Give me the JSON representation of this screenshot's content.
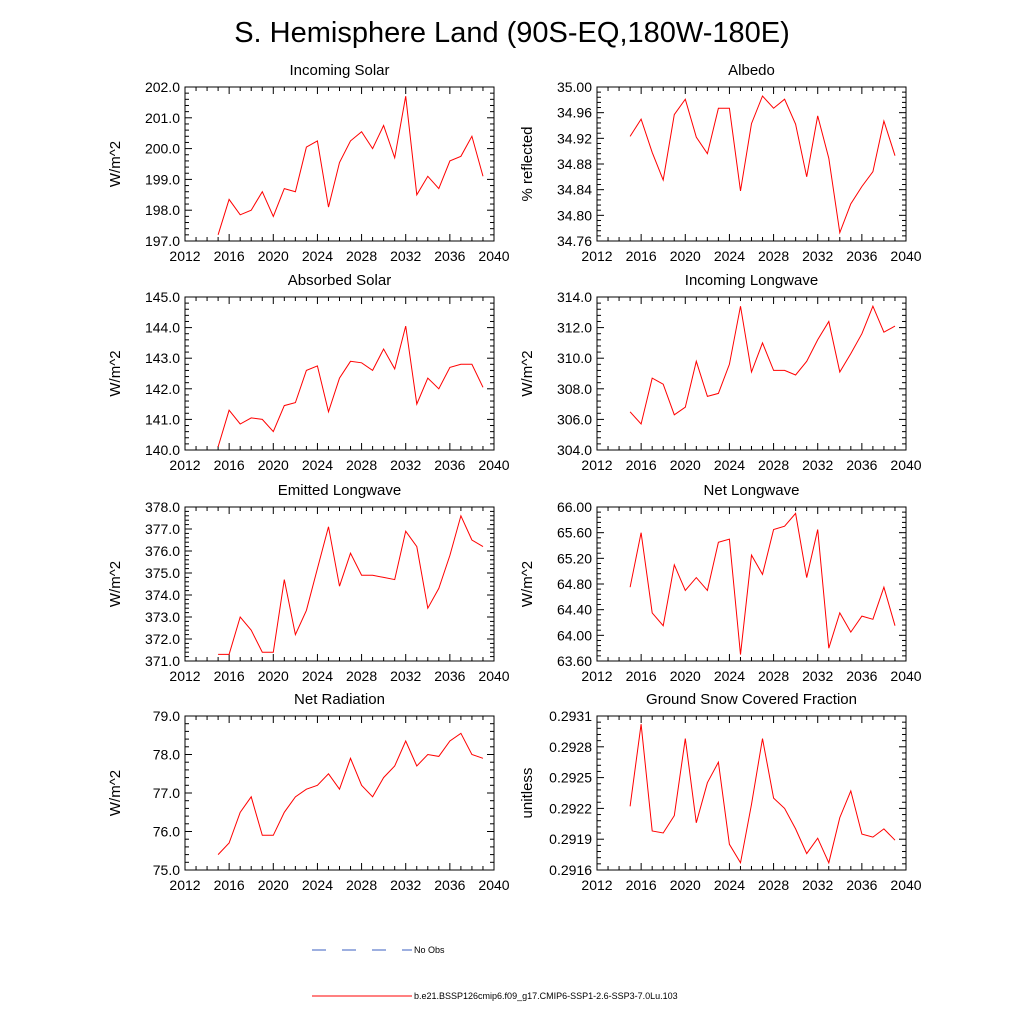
{
  "title": "S. Hemisphere Land (90S-EQ,180W-180E)",
  "legend": {
    "entries": [
      {
        "label": "No Obs",
        "color": "#3b5fc0",
        "style": "dashed"
      },
      {
        "label": "b.e21.BSSP126cmip6.f09_g17.CMIP6-SSP1-2.6-SSP3-7.0Lu.103",
        "color": "#ff0000",
        "style": "solid"
      }
    ]
  },
  "line_color": "#ff0000",
  "chart_data": [
    {
      "type": "line",
      "title": "Incoming Solar",
      "ylabel": "W/m^2",
      "xlim": [
        2012,
        2040
      ],
      "xticks": [
        2012,
        2016,
        2020,
        2024,
        2028,
        2032,
        2036,
        2040
      ],
      "ylim": [
        197.0,
        202.0
      ],
      "yticks": [
        "197.0",
        "198.0",
        "199.0",
        "200.0",
        "201.0",
        "202.0"
      ],
      "x": [
        2015,
        2016,
        2017,
        2018,
        2019,
        2020,
        2021,
        2022,
        2023,
        2024,
        2025,
        2026,
        2027,
        2028,
        2029,
        2030,
        2031,
        2032,
        2033,
        2034,
        2035,
        2036,
        2037,
        2038,
        2039
      ],
      "values": [
        197.2,
        198.35,
        197.85,
        198.0,
        198.6,
        197.8,
        198.7,
        198.6,
        200.05,
        200.25,
        198.1,
        199.55,
        200.25,
        200.55,
        200.0,
        200.75,
        199.7,
        201.7,
        198.5,
        199.1,
        198.7,
        199.6,
        199.75,
        200.4,
        199.1
      ]
    },
    {
      "type": "line",
      "title": "Albedo",
      "ylabel": "% reflected",
      "xlim": [
        2012,
        2040
      ],
      "xticks": [
        2012,
        2016,
        2020,
        2024,
        2028,
        2032,
        2036,
        2040
      ],
      "ylim": [
        34.76,
        35.0
      ],
      "yticks": [
        "34.76",
        "34.80",
        "34.84",
        "34.88",
        "34.92",
        "34.96",
        "35.00"
      ],
      "x": [
        2015,
        2016,
        2017,
        2018,
        2019,
        2020,
        2021,
        2022,
        2023,
        2024,
        2025,
        2026,
        2027,
        2028,
        2029,
        2030,
        2031,
        2032,
        2033,
        2034,
        2035,
        2036,
        2037,
        2038,
        2039
      ],
      "values": [
        34.923,
        34.95,
        34.898,
        34.855,
        34.957,
        34.981,
        34.922,
        34.896,
        34.967,
        34.967,
        34.838,
        34.943,
        34.986,
        34.967,
        34.981,
        34.942,
        34.86,
        34.955,
        34.889,
        34.773,
        34.818,
        34.845,
        34.868,
        34.947,
        34.893
      ]
    },
    {
      "type": "line",
      "title": "Absorbed Solar",
      "ylabel": "W/m^2",
      "xlim": [
        2012,
        2040
      ],
      "xticks": [
        2012,
        2016,
        2020,
        2024,
        2028,
        2032,
        2036,
        2040
      ],
      "ylim": [
        140.0,
        145.0
      ],
      "yticks": [
        "140.0",
        "141.0",
        "142.0",
        "143.0",
        "144.0",
        "145.0"
      ],
      "x": [
        2015,
        2016,
        2017,
        2018,
        2019,
        2020,
        2021,
        2022,
        2023,
        2024,
        2025,
        2026,
        2027,
        2028,
        2029,
        2030,
        2031,
        2032,
        2033,
        2034,
        2035,
        2036,
        2037,
        2038,
        2039
      ],
      "values": [
        140.1,
        141.3,
        140.85,
        141.05,
        141.0,
        140.6,
        141.45,
        141.55,
        142.6,
        142.75,
        141.25,
        142.35,
        142.9,
        142.85,
        142.6,
        143.3,
        142.65,
        144.05,
        141.5,
        142.35,
        142.0,
        142.7,
        142.8,
        142.8,
        142.05
      ]
    },
    {
      "type": "line",
      "title": "Incoming Longwave",
      "ylabel": "W/m^2",
      "xlim": [
        2012,
        2040
      ],
      "xticks": [
        2012,
        2016,
        2020,
        2024,
        2028,
        2032,
        2036,
        2040
      ],
      "ylim": [
        304.0,
        314.0
      ],
      "yticks": [
        "304.0",
        "306.0",
        "308.0",
        "310.0",
        "312.0",
        "314.0"
      ],
      "x": [
        2015,
        2016,
        2017,
        2018,
        2019,
        2020,
        2021,
        2022,
        2023,
        2024,
        2025,
        2026,
        2027,
        2028,
        2029,
        2030,
        2031,
        2032,
        2033,
        2034,
        2035,
        2036,
        2037,
        2038,
        2039
      ],
      "values": [
        306.5,
        305.7,
        308.7,
        308.3,
        306.3,
        306.8,
        309.8,
        307.5,
        307.7,
        309.6,
        313.4,
        309.1,
        311.0,
        309.2,
        309.2,
        308.9,
        309.8,
        311.2,
        312.4,
        309.1,
        310.3,
        311.6,
        313.4,
        311.7,
        312.1
      ]
    },
    {
      "type": "line",
      "title": "Emitted Longwave",
      "ylabel": "W/m^2",
      "xlim": [
        2012,
        2040
      ],
      "xticks": [
        2012,
        2016,
        2020,
        2024,
        2028,
        2032,
        2036,
        2040
      ],
      "ylim": [
        371.0,
        378.0
      ],
      "yticks": [
        "371.0",
        "372.0",
        "373.0",
        "374.0",
        "375.0",
        "376.0",
        "377.0",
        "378.0"
      ],
      "x": [
        2015,
        2016,
        2017,
        2018,
        2019,
        2020,
        2021,
        2022,
        2023,
        2024,
        2025,
        2026,
        2027,
        2028,
        2029,
        2030,
        2031,
        2032,
        2033,
        2034,
        2035,
        2036,
        2037,
        2038,
        2039
      ],
      "values": [
        371.3,
        371.3,
        373.0,
        372.4,
        371.4,
        371.4,
        374.7,
        372.2,
        373.3,
        375.2,
        377.1,
        374.4,
        375.9,
        374.9,
        374.9,
        374.8,
        374.7,
        376.9,
        376.2,
        373.4,
        374.3,
        375.8,
        377.6,
        376.5,
        376.2
      ]
    },
    {
      "type": "line",
      "title": "Net Longwave",
      "ylabel": "W/m^2",
      "xlim": [
        2012,
        2040
      ],
      "xticks": [
        2012,
        2016,
        2020,
        2024,
        2028,
        2032,
        2036,
        2040
      ],
      "ylim": [
        63.6,
        66.0
      ],
      "yticks": [
        "63.60",
        "64.00",
        "64.40",
        "64.80",
        "65.20",
        "65.60",
        "66.00"
      ],
      "x": [
        2015,
        2016,
        2017,
        2018,
        2019,
        2020,
        2021,
        2022,
        2023,
        2024,
        2025,
        2026,
        2027,
        2028,
        2029,
        2030,
        2031,
        2032,
        2033,
        2034,
        2035,
        2036,
        2037,
        2038,
        2039
      ],
      "values": [
        64.75,
        65.6,
        64.35,
        64.15,
        65.1,
        64.7,
        64.9,
        64.7,
        65.45,
        65.5,
        63.7,
        65.25,
        64.95,
        65.65,
        65.7,
        65.9,
        64.9,
        65.65,
        63.8,
        64.35,
        64.05,
        64.3,
        64.25,
        64.75,
        64.15
      ]
    },
    {
      "type": "line",
      "title": "Net Radiation",
      "ylabel": "W/m^2",
      "xlim": [
        2012,
        2040
      ],
      "xticks": [
        2012,
        2016,
        2020,
        2024,
        2028,
        2032,
        2036,
        2040
      ],
      "ylim": [
        75.0,
        79.0
      ],
      "yticks": [
        "75.0",
        "76.0",
        "77.0",
        "78.0",
        "79.0"
      ],
      "x": [
        2015,
        2016,
        2017,
        2018,
        2019,
        2020,
        2021,
        2022,
        2023,
        2024,
        2025,
        2026,
        2027,
        2028,
        2029,
        2030,
        2031,
        2032,
        2033,
        2034,
        2035,
        2036,
        2037,
        2038,
        2039
      ],
      "values": [
        75.4,
        75.7,
        76.5,
        76.9,
        75.9,
        75.9,
        76.5,
        76.9,
        77.1,
        77.2,
        77.5,
        77.1,
        77.9,
        77.2,
        76.9,
        77.4,
        77.7,
        78.35,
        77.7,
        78.0,
        77.95,
        78.35,
        78.55,
        78.0,
        77.9
      ]
    },
    {
      "type": "line",
      "title": "Ground Snow Covered Fraction",
      "ylabel": "unitless",
      "xlim": [
        2012,
        2040
      ],
      "xticks": [
        2012,
        2016,
        2020,
        2024,
        2028,
        2032,
        2036,
        2040
      ],
      "ylim": [
        0.2916,
        0.2931
      ],
      "yticks": [
        "0.2916",
        "0.2919",
        "0.2922",
        "0.2925",
        "0.2928",
        "0.2931"
      ],
      "x": [
        2015,
        2016,
        2017,
        2018,
        2019,
        2020,
        2021,
        2022,
        2023,
        2024,
        2025,
        2026,
        2027,
        2028,
        2029,
        2030,
        2031,
        2032,
        2033,
        2034,
        2035,
        2036,
        2037,
        2038,
        2039
      ],
      "values": [
        0.29222,
        0.29302,
        0.29198,
        0.29196,
        0.29213,
        0.29288,
        0.29206,
        0.29245,
        0.29265,
        0.29185,
        0.29167,
        0.29224,
        0.29288,
        0.2923,
        0.2922,
        0.292,
        0.29176,
        0.29191,
        0.29167,
        0.29211,
        0.29237,
        0.29195,
        0.29192,
        0.292,
        0.29189
      ]
    }
  ]
}
